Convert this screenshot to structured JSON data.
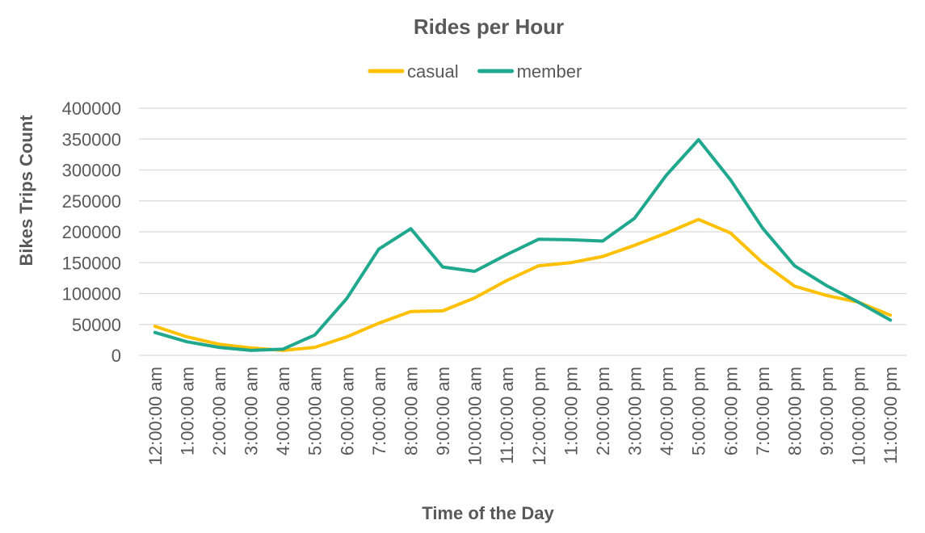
{
  "chart_data": {
    "type": "line",
    "title": "Rides per Hour",
    "xlabel": "Time of the Day",
    "ylabel": "Bikes Trips Count",
    "ylim": [
      0,
      400000
    ],
    "yticks": [
      "0",
      "50000",
      "100000",
      "150000",
      "200000",
      "250000",
      "300000",
      "350000",
      "400000"
    ],
    "grid": true,
    "legend_position": "top",
    "categories": [
      "12:00:00 am",
      "1:00:00 am",
      "2:00:00 am",
      "3:00:00 am",
      "4:00:00 am",
      "5:00:00 am",
      "6:00:00 am",
      "7:00:00 am",
      "8:00:00 am",
      "9:00:00 am",
      "10:00:00 am",
      "11:00:00 am",
      "12:00:00 pm",
      "1:00:00 pm",
      "2:00:00 pm",
      "3:00:00 pm",
      "4:00:00 pm",
      "5:00:00 pm",
      "6:00:00 pm",
      "7:00:00 pm",
      "8:00:00 pm",
      "9:00:00 pm",
      "10:00:00 pm",
      "11:00:00 pm"
    ],
    "series": [
      {
        "name": "casual",
        "color": "#FFC000",
        "values": [
          47000,
          30000,
          18000,
          12000,
          8000,
          13000,
          30000,
          52000,
          71000,
          72000,
          93000,
          121000,
          145000,
          150000,
          160000,
          178000,
          198000,
          220000,
          198000,
          150000,
          112000,
          97000,
          86000,
          65000
        ]
      },
      {
        "name": "member",
        "color": "#1FA88E",
        "values": [
          37000,
          22000,
          13000,
          8000,
          10000,
          33000,
          92000,
          172000,
          205000,
          143000,
          136000,
          163000,
          188000,
          187000,
          185000,
          222000,
          292000,
          349000,
          284000,
          206000,
          145000,
          113000,
          86000,
          57000
        ]
      }
    ]
  }
}
